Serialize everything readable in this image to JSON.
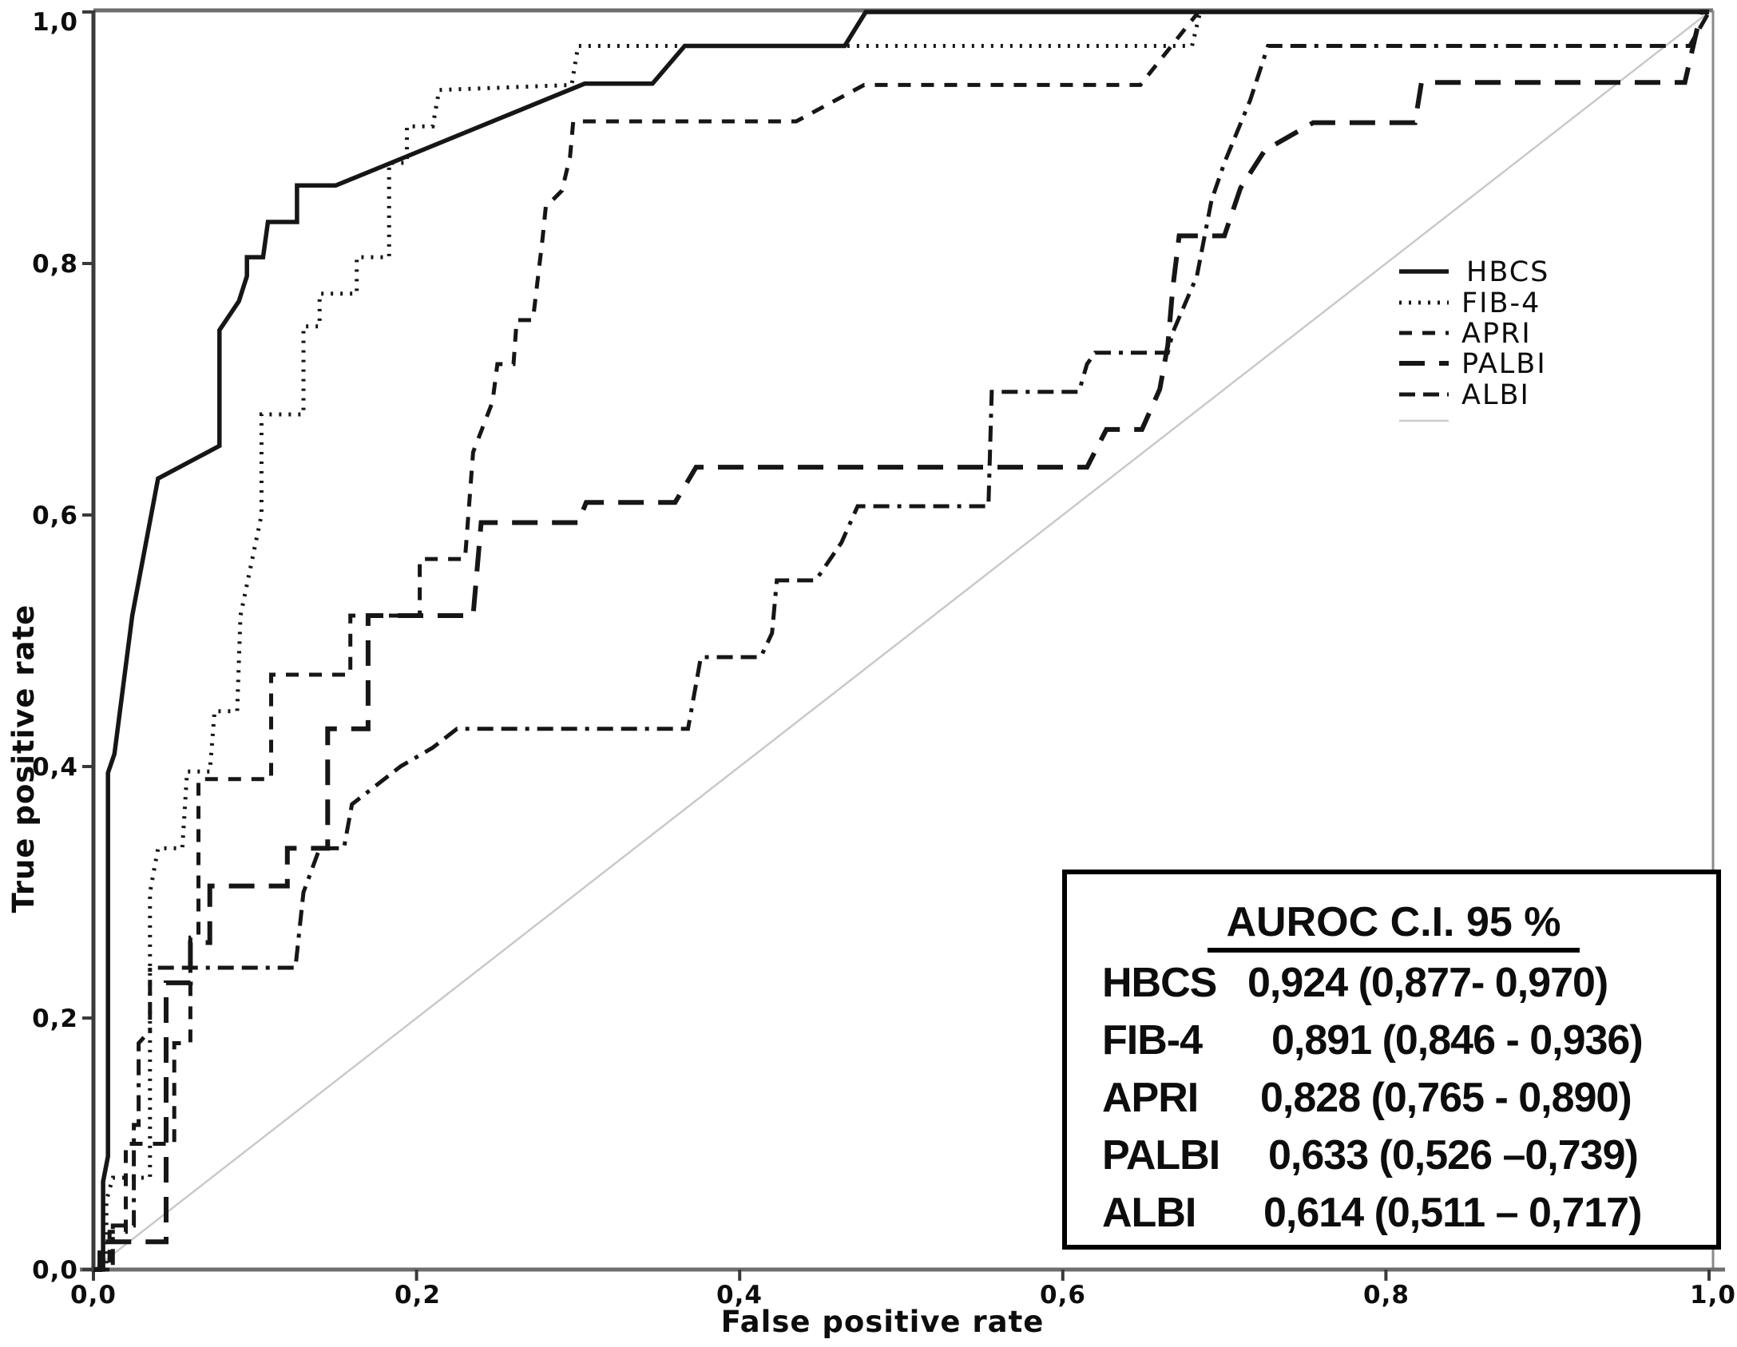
{
  "figure": {
    "axes": {
      "x_title": "False positive rate",
      "y_title": "True positive rate",
      "x_ticks": [
        "0,0",
        "0,2",
        "0,4",
        "0,6",
        "0,8",
        "1,0"
      ],
      "y_ticks": [
        "0,0",
        "0,2",
        "0,4",
        "0,6",
        "0,8",
        "1,0"
      ]
    },
    "legend": {
      "items": [
        {
          "label": "HBCS",
          "style": "solid"
        },
        {
          "label": "FIB-4",
          "style": "dotted"
        },
        {
          "label": "APRI",
          "style": "dashed"
        },
        {
          "label": "PALBI",
          "style": "longdash"
        },
        {
          "label": "ALBI",
          "style": "dashdot"
        },
        {
          "label": "",
          "style": "reference"
        }
      ]
    },
    "auroc_box": {
      "header": "AUROC   C.I. 95 %",
      "rows": [
        {
          "name": "HBCS",
          "value": "0,924 (0,877- 0,970)"
        },
        {
          "name": "FIB-4",
          "value": "0,891 (0,846 - 0,936)"
        },
        {
          "name": "APRI",
          "value": "0,828 (0,765 - 0,890)"
        },
        {
          "name": "PALBI",
          "value": "0,633 (0,526 –0,739)"
        },
        {
          "name": "ALBI",
          "value": "0,614 (0,511 – 0,717)"
        }
      ]
    },
    "colors": {
      "curve": "#161616",
      "reference_line": "#c9c9c9",
      "frame": "#6e6e6e",
      "background": "#ffffff"
    }
  },
  "chart_data": {
    "type": "line",
    "subtype": "ROC step curves",
    "title": "",
    "xlabel": "False positive rate",
    "ylabel": "True positive rate",
    "xlim": [
      0,
      1
    ],
    "ylim": [
      0,
      1
    ],
    "x_tick_values": [
      0.0,
      0.2,
      0.4,
      0.6,
      0.8,
      1.0
    ],
    "y_tick_values": [
      0.0,
      0.2,
      0.4,
      0.6,
      0.8,
      1.0
    ],
    "decimal_separator": "comma",
    "grid": false,
    "legend_position": "inside-upper-right",
    "series": [
      {
        "name": "HBCS",
        "style": "solid",
        "auroc": "0,924",
        "ci_95": "(0,877- 0,970)",
        "points": [
          [
            0,
            0
          ],
          [
            0.006,
            0
          ],
          [
            0.006,
            0.07
          ],
          [
            0.009,
            0.09
          ],
          [
            0.009,
            0.395
          ],
          [
            0.013,
            0.41
          ],
          [
            0.024,
            0.52
          ],
          [
            0.04,
            0.629
          ],
          [
            0.078,
            0.655
          ],
          [
            0.078,
            0.747
          ],
          [
            0.09,
            0.77
          ],
          [
            0.095,
            0.79
          ],
          [
            0.095,
            0.805
          ],
          [
            0.105,
            0.805
          ],
          [
            0.108,
            0.833
          ],
          [
            0.126,
            0.833
          ],
          [
            0.126,
            0.862
          ],
          [
            0.15,
            0.862
          ],
          [
            0.304,
            0.943
          ],
          [
            0.346,
            0.943
          ],
          [
            0.366,
            0.973
          ],
          [
            0.465,
            0.973
          ],
          [
            0.478,
            1
          ],
          [
            1,
            1
          ]
        ]
      },
      {
        "name": "FIB-4",
        "style": "dotted",
        "auroc": "0,891",
        "ci_95": "(0,846 - 0,936)",
        "points": [
          [
            0,
            0
          ],
          [
            0.008,
            0
          ],
          [
            0.008,
            0.055
          ],
          [
            0.012,
            0.073
          ],
          [
            0.035,
            0.073
          ],
          [
            0.035,
            0.3
          ],
          [
            0.04,
            0.335
          ],
          [
            0.055,
            0.335
          ],
          [
            0.058,
            0.396
          ],
          [
            0.072,
            0.396
          ],
          [
            0.075,
            0.444
          ],
          [
            0.089,
            0.444
          ],
          [
            0.091,
            0.52
          ],
          [
            0.104,
            0.6
          ],
          [
            0.104,
            0.68
          ],
          [
            0.13,
            0.68
          ],
          [
            0.13,
            0.75
          ],
          [
            0.14,
            0.75
          ],
          [
            0.14,
            0.776
          ],
          [
            0.163,
            0.776
          ],
          [
            0.163,
            0.805
          ],
          [
            0.183,
            0.805
          ],
          [
            0.183,
            0.88
          ],
          [
            0.194,
            0.88
          ],
          [
            0.194,
            0.909
          ],
          [
            0.21,
            0.909
          ],
          [
            0.214,
            0.938
          ],
          [
            0.296,
            0.942
          ],
          [
            0.3,
            0.973
          ],
          [
            0.68,
            0.973
          ],
          [
            0.685,
            1
          ],
          [
            1,
            1
          ]
        ]
      },
      {
        "name": "APRI",
        "style": "dashed",
        "auroc": "0,828",
        "ci_95": "(0,765 - 0,890)",
        "points": [
          [
            0,
            0
          ],
          [
            0.01,
            0
          ],
          [
            0.01,
            0.03
          ],
          [
            0.02,
            0.03
          ],
          [
            0.02,
            0.1
          ],
          [
            0.05,
            0.1
          ],
          [
            0.05,
            0.18
          ],
          [
            0.06,
            0.18
          ],
          [
            0.06,
            0.264
          ],
          [
            0.065,
            0.264
          ],
          [
            0.065,
            0.39
          ],
          [
            0.11,
            0.39
          ],
          [
            0.11,
            0.473
          ],
          [
            0.159,
            0.473
          ],
          [
            0.159,
            0.52
          ],
          [
            0.202,
            0.52
          ],
          [
            0.202,
            0.565
          ],
          [
            0.23,
            0.565
          ],
          [
            0.235,
            0.65
          ],
          [
            0.247,
            0.69
          ],
          [
            0.25,
            0.72
          ],
          [
            0.26,
            0.72
          ],
          [
            0.262,
            0.755
          ],
          [
            0.272,
            0.755
          ],
          [
            0.278,
            0.82
          ],
          [
            0.28,
            0.845
          ],
          [
            0.29,
            0.858
          ],
          [
            0.295,
            0.885
          ],
          [
            0.297,
            0.913
          ],
          [
            0.435,
            0.913
          ],
          [
            0.477,
            0.942
          ],
          [
            0.648,
            0.942
          ],
          [
            0.684,
            1
          ],
          [
            1,
            1
          ]
        ]
      },
      {
        "name": "PALBI",
        "style": "longdash",
        "auroc": "0,633",
        "ci_95": "(0,526 –0,739)",
        "points": [
          [
            0,
            0
          ],
          [
            0.004,
            0
          ],
          [
            0.004,
            0.022
          ],
          [
            0.045,
            0.022
          ],
          [
            0.045,
            0.228
          ],
          [
            0.06,
            0.228
          ],
          [
            0.06,
            0.26
          ],
          [
            0.072,
            0.26
          ],
          [
            0.072,
            0.305
          ],
          [
            0.12,
            0.305
          ],
          [
            0.12,
            0.335
          ],
          [
            0.145,
            0.335
          ],
          [
            0.145,
            0.43
          ],
          [
            0.17,
            0.43
          ],
          [
            0.17,
            0.52
          ],
          [
            0.235,
            0.52
          ],
          [
            0.24,
            0.594
          ],
          [
            0.3,
            0.594
          ],
          [
            0.305,
            0.61
          ],
          [
            0.36,
            0.61
          ],
          [
            0.373,
            0.638
          ],
          [
            0.615,
            0.638
          ],
          [
            0.627,
            0.668
          ],
          [
            0.649,
            0.668
          ],
          [
            0.66,
            0.7
          ],
          [
            0.665,
            0.735
          ],
          [
            0.668,
            0.78
          ],
          [
            0.672,
            0.822
          ],
          [
            0.7,
            0.822
          ],
          [
            0.71,
            0.86
          ],
          [
            0.725,
            0.89
          ],
          [
            0.755,
            0.912
          ],
          [
            0.818,
            0.912
          ],
          [
            0.822,
            0.944
          ],
          [
            0.985,
            0.944
          ],
          [
            0.995,
            1
          ],
          [
            1,
            1
          ]
        ]
      },
      {
        "name": "ALBI",
        "style": "dashdot",
        "auroc": "0,614",
        "ci_95": "(0,511 – 0,717)",
        "points": [
          [
            0,
            0
          ],
          [
            0.012,
            0
          ],
          [
            0.012,
            0.035
          ],
          [
            0.025,
            0.035
          ],
          [
            0.025,
            0.115
          ],
          [
            0.028,
            0.115
          ],
          [
            0.028,
            0.18
          ],
          [
            0.035,
            0.19
          ],
          [
            0.035,
            0.24
          ],
          [
            0.125,
            0.24
          ],
          [
            0.13,
            0.3
          ],
          [
            0.14,
            0.335
          ],
          [
            0.155,
            0.335
          ],
          [
            0.16,
            0.37
          ],
          [
            0.19,
            0.4
          ],
          [
            0.21,
            0.415
          ],
          [
            0.225,
            0.43
          ],
          [
            0.368,
            0.43
          ],
          [
            0.376,
            0.487
          ],
          [
            0.413,
            0.487
          ],
          [
            0.42,
            0.506
          ],
          [
            0.423,
            0.548
          ],
          [
            0.447,
            0.548
          ],
          [
            0.463,
            0.578
          ],
          [
            0.473,
            0.607
          ],
          [
            0.554,
            0.607
          ],
          [
            0.556,
            0.698
          ],
          [
            0.61,
            0.698
          ],
          [
            0.615,
            0.72
          ],
          [
            0.62,
            0.729
          ],
          [
            0.665,
            0.729
          ],
          [
            0.668,
            0.745
          ],
          [
            0.683,
            0.79
          ],
          [
            0.692,
            0.85
          ],
          [
            0.7,
            0.88
          ],
          [
            0.716,
            0.93
          ],
          [
            0.727,
            0.973
          ],
          [
            0.988,
            0.973
          ],
          [
            1,
            1
          ]
        ]
      },
      {
        "name": "reference",
        "style": "reference",
        "points": [
          [
            0,
            0
          ],
          [
            1,
            1
          ]
        ]
      }
    ]
  }
}
